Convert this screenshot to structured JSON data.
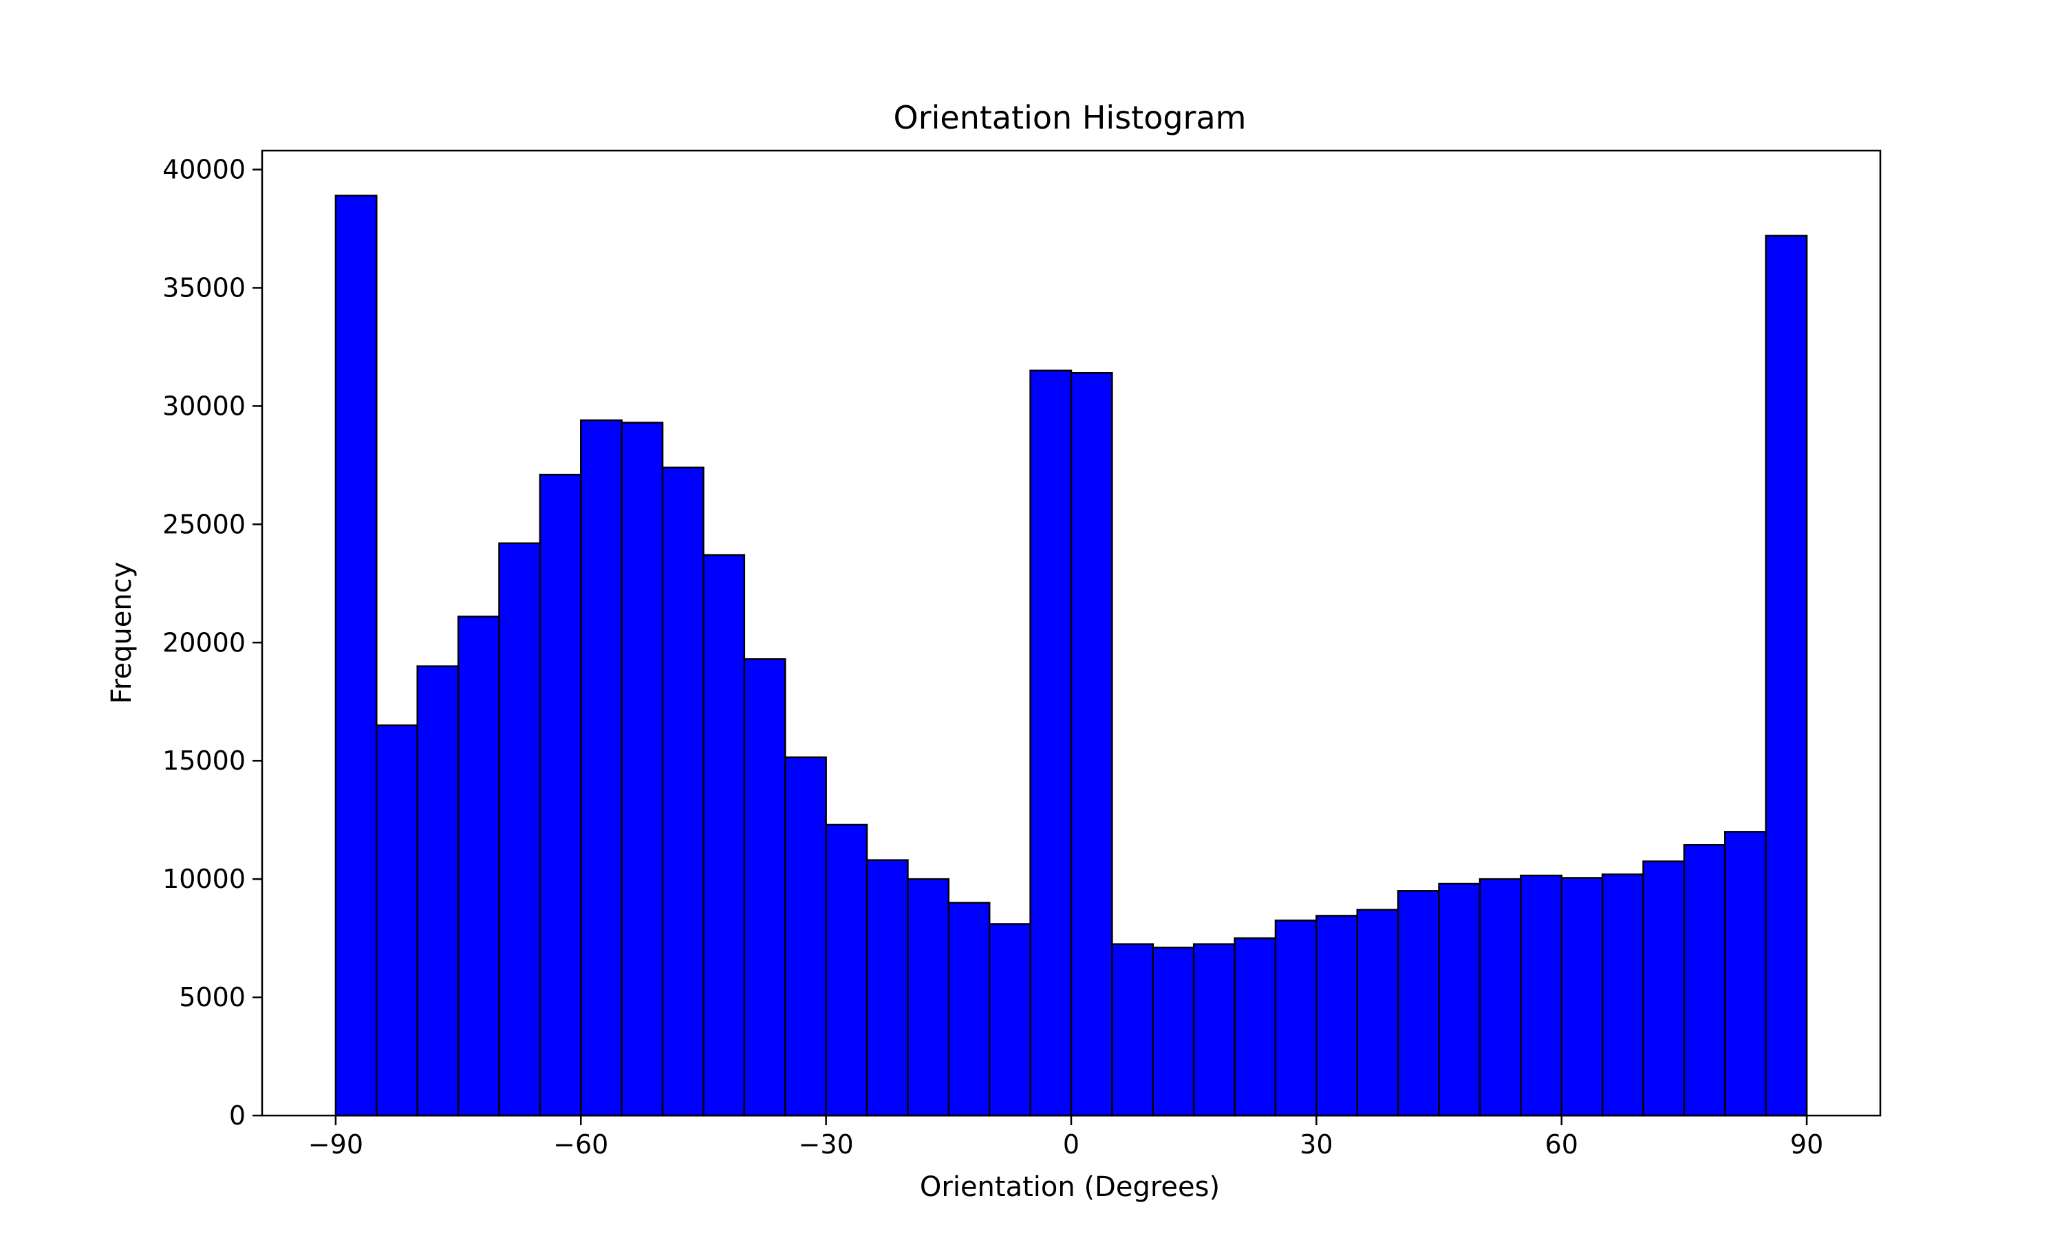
{
  "chart_data": {
    "type": "bar",
    "title": "Orientation Histogram",
    "xlabel": "Orientation (Degrees)",
    "ylabel": "Frequency",
    "xlim": [
      -99,
      99
    ],
    "ylim": [
      0,
      40800
    ],
    "xticks": [
      -90,
      -60,
      -30,
      0,
      30,
      60,
      90
    ],
    "xtick_labels": [
      "−90",
      "−60",
      "−30",
      "0",
      "30",
      "60",
      "90"
    ],
    "yticks": [
      0,
      5000,
      10000,
      15000,
      20000,
      25000,
      30000,
      35000,
      40000
    ],
    "ytick_labels": [
      "0",
      "5000",
      "10000",
      "15000",
      "20000",
      "25000",
      "30000",
      "35000",
      "40000"
    ],
    "bin_edges": [
      -90,
      -85,
      -80,
      -75,
      -70,
      -65,
      -60,
      -55,
      -50,
      -45,
      -40,
      -35,
      -30,
      -25,
      -20,
      -15,
      -10,
      -5,
      0,
      5,
      10,
      15,
      20,
      25,
      30,
      35,
      40,
      45,
      50,
      55,
      60,
      65,
      70,
      75,
      80,
      85,
      90
    ],
    "values": [
      38900,
      16500,
      19000,
      21100,
      24200,
      27100,
      29400,
      29300,
      27400,
      23700,
      19300,
      15150,
      12300,
      10800,
      10000,
      9000,
      8100,
      31500,
      31400,
      7250,
      7100,
      7250,
      7500,
      8250,
      8450,
      8700,
      9500,
      9800,
      10000,
      10150,
      10050,
      10200,
      10750,
      11450,
      12000,
      37200
    ],
    "bar_color": "#0000ff",
    "edge_color": "#000000",
    "grid": false,
    "legend": false
  }
}
